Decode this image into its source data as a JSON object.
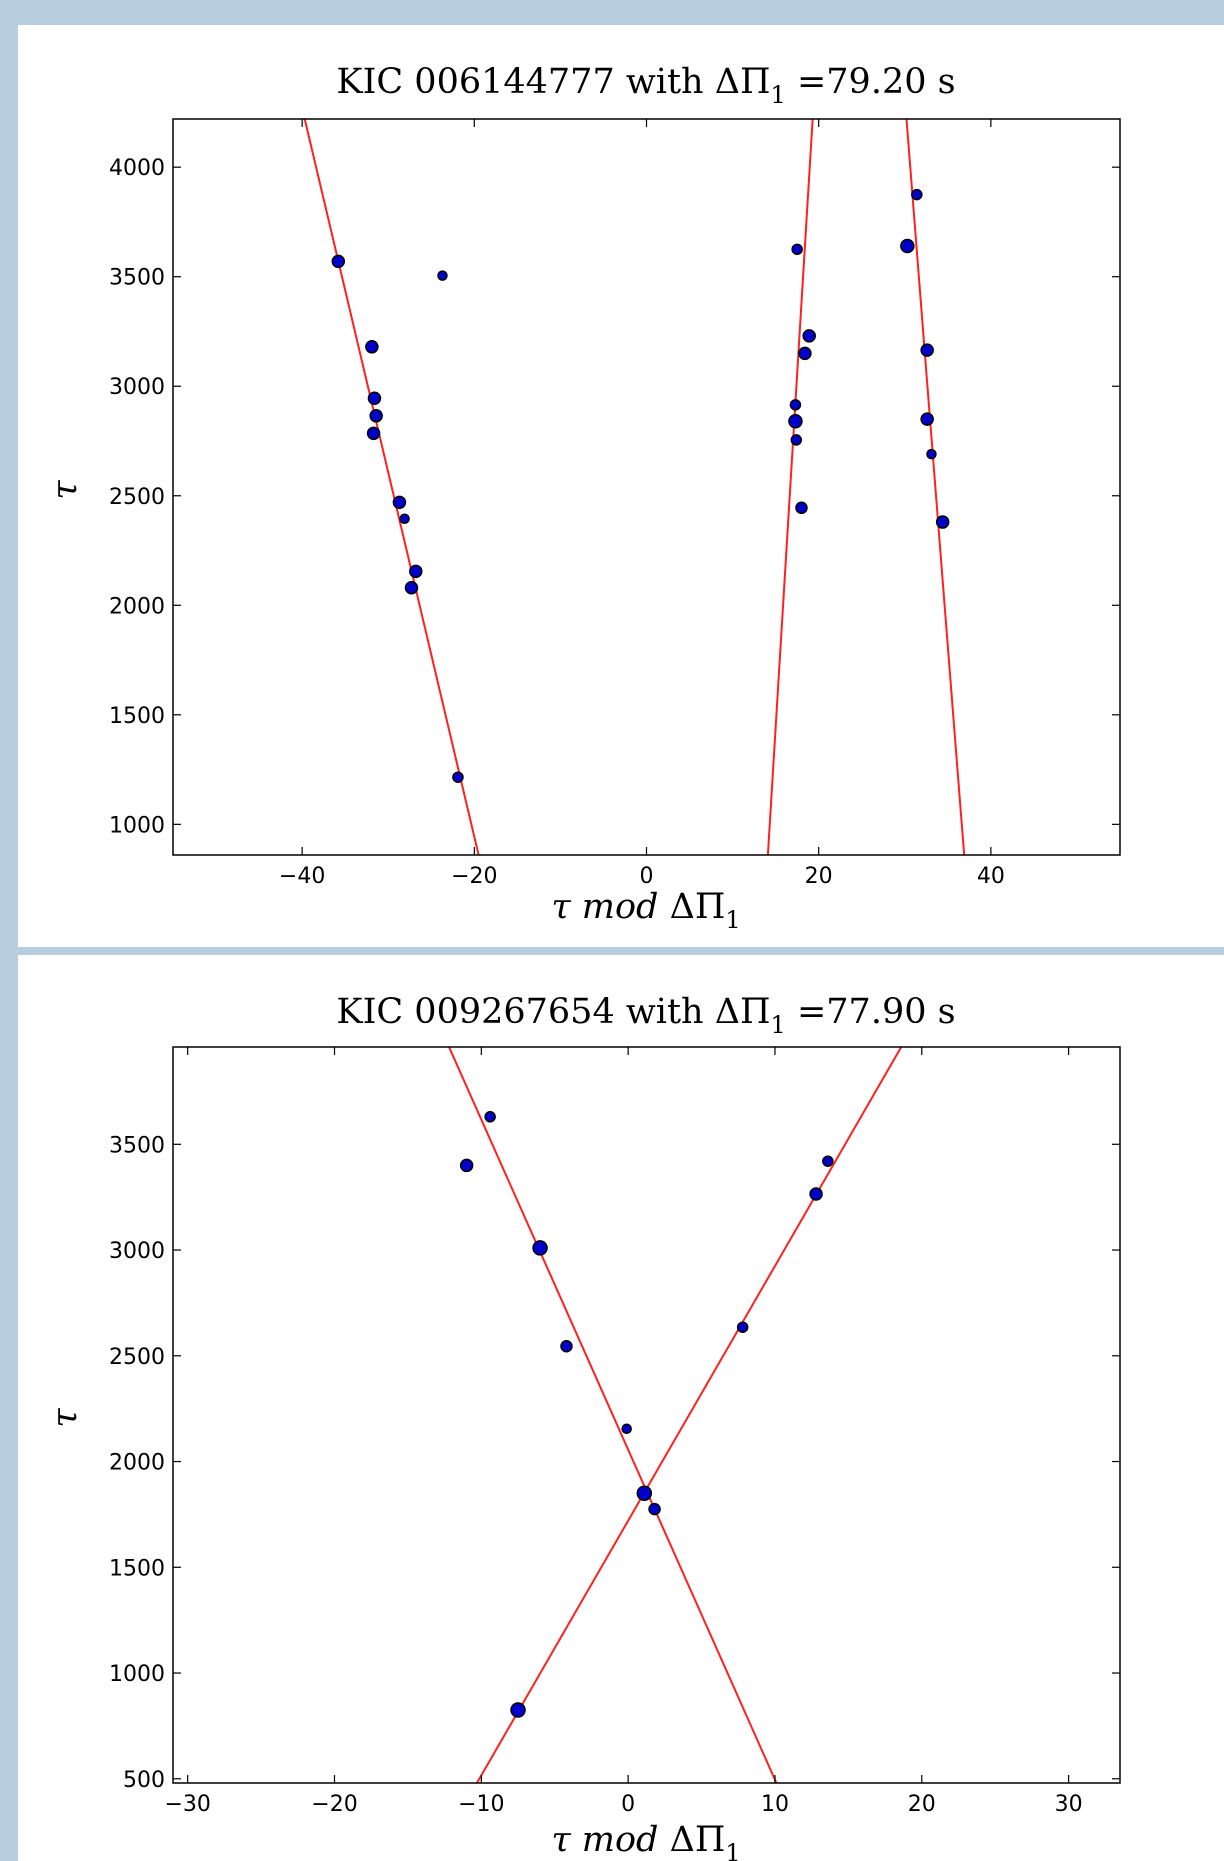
{
  "colors": {
    "background": "#b9cde0",
    "panel": "#ffffff",
    "fit_line": "#ff2020",
    "marker": "#0000cc"
  },
  "chart_data": [
    {
      "type": "scatter",
      "title_prefix": "KIC 006144777 with ",
      "title_symbol": "ΔΠ",
      "title_subscript": "1",
      "title_suffix": " =79.20 s",
      "xlabel_prefix": "τ mod ",
      "xlabel_symbol": "ΔΠ",
      "xlabel_subscript": "1",
      "ylabel": "τ",
      "xlim": [
        -55,
        55
      ],
      "ylim": [
        860,
        4220
      ],
      "xticks": [
        -40,
        -20,
        0,
        20,
        40
      ],
      "xtick_labels": [
        "−40",
        "−20",
        "0",
        "20",
        "40"
      ],
      "yticks": [
        1000,
        1500,
        2000,
        2500,
        3000,
        3500,
        4000
      ],
      "ytick_labels": [
        "1000",
        "1500",
        "2000",
        "2500",
        "3000",
        "3500",
        "4000"
      ],
      "grid": false,
      "points": [
        {
          "x": -35.8,
          "y": 3570,
          "s": 6
        },
        {
          "x": -23.7,
          "y": 3505,
          "s": 4.5
        },
        {
          "x": -31.9,
          "y": 3180,
          "s": 6
        },
        {
          "x": -31.6,
          "y": 2945,
          "s": 6
        },
        {
          "x": -31.4,
          "y": 2865,
          "s": 6
        },
        {
          "x": -31.7,
          "y": 2785,
          "s": 6
        },
        {
          "x": -28.7,
          "y": 2470,
          "s": 6
        },
        {
          "x": -28.1,
          "y": 2395,
          "s": 4.5
        },
        {
          "x": -26.8,
          "y": 2155,
          "s": 6
        },
        {
          "x": -27.3,
          "y": 2080,
          "s": 6
        },
        {
          "x": -21.9,
          "y": 1215,
          "s": 5
        },
        {
          "x": 17.5,
          "y": 3625,
          "s": 5
        },
        {
          "x": 18.9,
          "y": 3230,
          "s": 6
        },
        {
          "x": 18.4,
          "y": 3150,
          "s": 6
        },
        {
          "x": 17.3,
          "y": 2915,
          "s": 5
        },
        {
          "x": 17.3,
          "y": 2840,
          "s": 6.5
        },
        {
          "x": 17.4,
          "y": 2755,
          "s": 5
        },
        {
          "x": 18.0,
          "y": 2445,
          "s": 5.5
        },
        {
          "x": 31.4,
          "y": 3875,
          "s": 5
        },
        {
          "x": 30.3,
          "y": 3640,
          "s": 6.5
        },
        {
          "x": 32.6,
          "y": 3165,
          "s": 6
        },
        {
          "x": 32.6,
          "y": 2850,
          "s": 6
        },
        {
          "x": 33.1,
          "y": 2690,
          "s": 4.5
        },
        {
          "x": 34.4,
          "y": 2380,
          "s": 6
        }
      ],
      "lines": [
        {
          "x1": -39.7,
          "y1": 4220,
          "x2": -19.5,
          "y2": 860
        },
        {
          "x1": 19.3,
          "y1": 4220,
          "x2": 14.1,
          "y2": 860
        },
        {
          "x1": 30.2,
          "y1": 4220,
          "x2": 36.9,
          "y2": 860
        }
      ]
    },
    {
      "type": "scatter",
      "title_prefix": "KIC 009267654 with ",
      "title_symbol": "ΔΠ",
      "title_subscript": "1",
      "title_suffix": " =77.90 s",
      "xlabel_prefix": "τ mod ",
      "xlabel_symbol": "ΔΠ",
      "xlabel_subscript": "1",
      "ylabel": "τ",
      "xlim": [
        -31,
        33.5
      ],
      "ylim": [
        480,
        3960
      ],
      "xticks": [
        -30,
        -20,
        -10,
        0,
        10,
        20,
        30
      ],
      "xtick_labels": [
        "−30",
        "−20",
        "−10",
        "0",
        "10",
        "20",
        "30"
      ],
      "yticks": [
        500,
        1000,
        1500,
        2000,
        2500,
        3000,
        3500
      ],
      "ytick_labels": [
        "500",
        "1000",
        "1500",
        "2000",
        "2500",
        "3000",
        "3500"
      ],
      "grid": false,
      "points": [
        {
          "x": -9.4,
          "y": 3630,
          "s": 5
        },
        {
          "x": -11.0,
          "y": 3400,
          "s": 6
        },
        {
          "x": -6.0,
          "y": 3010,
          "s": 7
        },
        {
          "x": -4.2,
          "y": 2545,
          "s": 5.5
        },
        {
          "x": -0.1,
          "y": 2155,
          "s": 4.5
        },
        {
          "x": 1.1,
          "y": 1850,
          "s": 7
        },
        {
          "x": 1.8,
          "y": 1775,
          "s": 5.5
        },
        {
          "x": 7.8,
          "y": 2635,
          "s": 5
        },
        {
          "x": 12.8,
          "y": 3265,
          "s": 6
        },
        {
          "x": 13.6,
          "y": 3420,
          "s": 5
        },
        {
          "x": -7.5,
          "y": 825,
          "s": 7
        }
      ],
      "lines": [
        {
          "x1": -12.2,
          "y1": 3960,
          "x2": 10.1,
          "y2": 480
        },
        {
          "x1": -10.3,
          "y1": 480,
          "x2": 18.6,
          "y2": 3960
        }
      ]
    }
  ]
}
